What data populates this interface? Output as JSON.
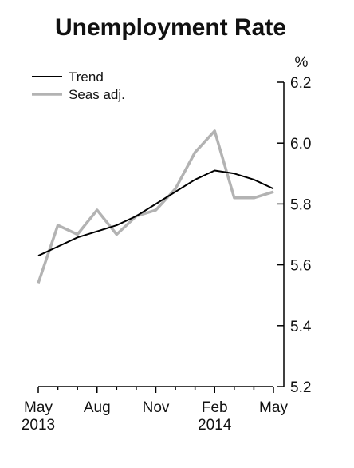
{
  "chart_data": {
    "type": "line",
    "title": "Unemployment Rate",
    "y_unit_label": "%",
    "categories": [
      "May 2013",
      null,
      null,
      "Aug",
      null,
      null,
      "Nov",
      null,
      null,
      "Feb 2014",
      null,
      null,
      "May"
    ],
    "series": [
      {
        "name": "Trend",
        "color": "#000000",
        "values": [
          5.63,
          5.66,
          5.69,
          5.71,
          5.73,
          5.76,
          5.8,
          5.84,
          5.88,
          5.91,
          5.9,
          5.88,
          5.85
        ]
      },
      {
        "name": "Seas adj.",
        "color": "#b3b3b3",
        "values": [
          5.54,
          5.73,
          5.7,
          5.78,
          5.7,
          5.76,
          5.78,
          5.85,
          5.97,
          6.04,
          5.82,
          5.82,
          5.84
        ]
      }
    ],
    "ylim": [
      5.2,
      6.2
    ],
    "yticks": [
      5.2,
      5.4,
      5.6,
      5.8,
      {
        "value": 6,
        "label": "6.0"
      },
      6.2
    ],
    "grid": false,
    "legend": "upper left",
    "y_axis_side": "right"
  }
}
